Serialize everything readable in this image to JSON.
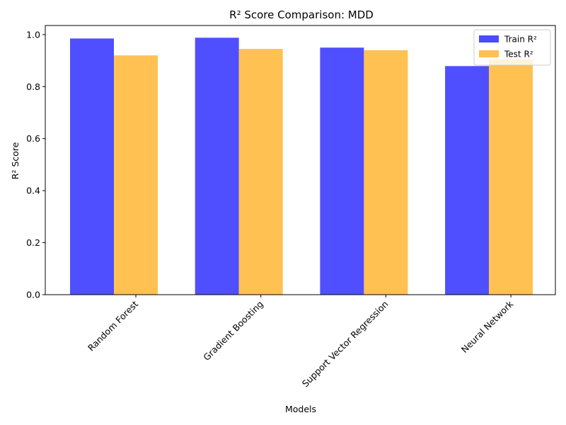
{
  "chart_data": {
    "type": "bar",
    "title": "R² Score Comparison: MDD",
    "xlabel": "Models",
    "ylabel": "R² Score",
    "categories": [
      "Random Forest",
      "Gradient Boosting",
      "Support Vector Regression",
      "Neural Network"
    ],
    "series": [
      {
        "name": "Train R²",
        "values": [
          0.985,
          0.988,
          0.95,
          0.879
        ],
        "color": "#4B4BFF"
      },
      {
        "name": "Test R²",
        "values": [
          0.92,
          0.945,
          0.94,
          0.905
        ],
        "color": "#FFC04F"
      }
    ],
    "ylim": [
      0,
      1.035
    ],
    "yticks": [
      "0.0",
      "0.2",
      "0.4",
      "0.6",
      "0.8",
      "1.0"
    ],
    "grid": false,
    "legend_position": "top-right",
    "xtick_rotation": 45
  }
}
